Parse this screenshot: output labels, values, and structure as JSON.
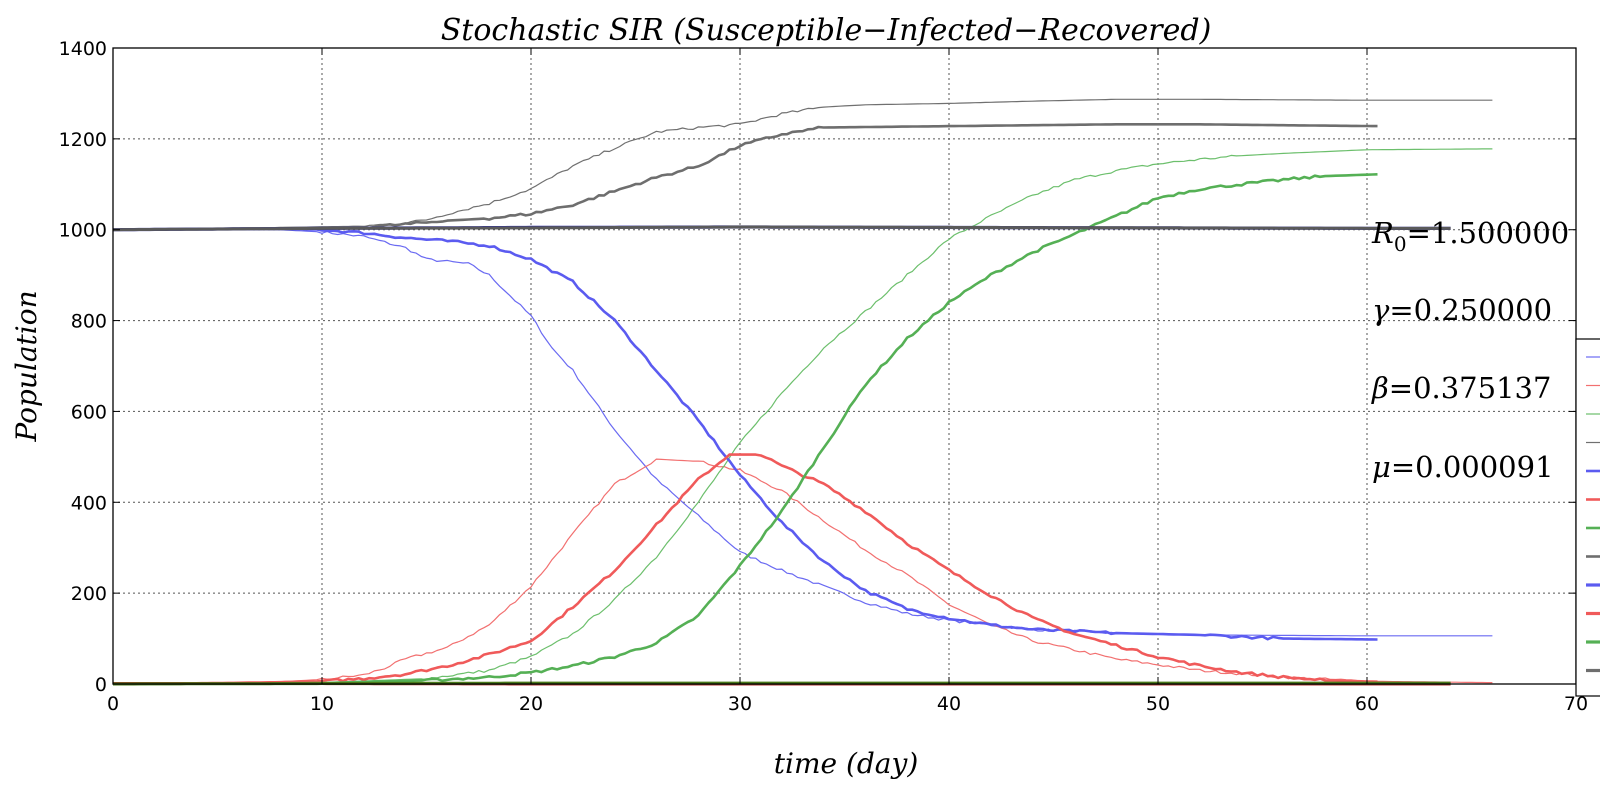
{
  "chart_data": {
    "type": "line",
    "title": "Stochastic SIR (Susceptible−Infected−Recovered)",
    "xlabel": "time (day)",
    "ylabel": "Population",
    "xlim": [
      0,
      70
    ],
    "ylim": [
      0,
      1400
    ],
    "xticks": [
      0,
      10,
      20,
      30,
      40,
      50,
      60,
      70
    ],
    "yticks": [
      0,
      200,
      400,
      600,
      800,
      1000,
      1200,
      1400
    ],
    "grid": true,
    "legend_position": "right, partially clipped, no labels visible",
    "annotations": [
      {
        "symbol": "R",
        "subscript": "0",
        "value": "=1.500000"
      },
      {
        "symbol": "γ",
        "subscript": "",
        "value": "=0.250000"
      },
      {
        "symbol": "β",
        "subscript": "",
        "value": "=0.375137"
      },
      {
        "symbol": "μ",
        "subscript": "",
        "value": "=0.000091"
      }
    ],
    "series": [
      {
        "color": "#6a6af2",
        "width": 1.2,
        "x": [
          0,
          5,
          8,
          10,
          12,
          14,
          15,
          17,
          18,
          19,
          20,
          21,
          22,
          24,
          26,
          28,
          30,
          32,
          34,
          36,
          38,
          40,
          44,
          48,
          52,
          56,
          60,
          66
        ],
        "y": [
          1000,
          1002,
          1000,
          995,
          985,
          960,
          935,
          925,
          900,
          855,
          810,
          740,
          690,
          560,
          450,
          370,
          290,
          250,
          215,
          180,
          155,
          140,
          120,
          112,
          108,
          107,
          106,
          106
        ]
      },
      {
        "color": "#f27070",
        "width": 1.2,
        "x": [
          0,
          5,
          8,
          10,
          12,
          13,
          14,
          16,
          18,
          20,
          22,
          24,
          26,
          28,
          30,
          32,
          34,
          36,
          38,
          40,
          42,
          44,
          48,
          52,
          56,
          60,
          66
        ],
        "y": [
          0,
          2,
          5,
          10,
          20,
          35,
          55,
          80,
          130,
          215,
          330,
          440,
          495,
          490,
          470,
          425,
          360,
          295,
          240,
          175,
          130,
          95,
          55,
          30,
          15,
          6,
          3
        ]
      },
      {
        "color": "#6cbf6c",
        "width": 1.2,
        "x": [
          0,
          5,
          10,
          15,
          18,
          20,
          22,
          24,
          26,
          28,
          30,
          32,
          34,
          36,
          38,
          40,
          42,
          44,
          46,
          48,
          50,
          52,
          54,
          56,
          58,
          60,
          66
        ],
        "y": [
          0,
          1,
          3,
          12,
          30,
          60,
          110,
          185,
          280,
          400,
          530,
          640,
          740,
          820,
          900,
          980,
          1030,
          1075,
          1110,
          1130,
          1145,
          1155,
          1163,
          1168,
          1172,
          1176,
          1178
        ]
      },
      {
        "color": "#707070",
        "width": 1.2,
        "x": [
          0,
          5,
          8,
          10,
          12,
          14,
          15,
          16,
          18,
          20,
          22,
          24,
          26,
          28,
          30,
          32,
          34,
          36,
          40,
          44,
          48,
          52,
          56,
          60,
          66
        ],
        "y": [
          1000,
          1002,
          1005,
          1005,
          1008,
          1015,
          1022,
          1035,
          1058,
          1090,
          1140,
          1180,
          1215,
          1225,
          1232,
          1255,
          1270,
          1275,
          1278,
          1283,
          1287,
          1287,
          1286,
          1285,
          1285
        ]
      },
      {
        "color": "#5b5bf0",
        "width": 2.6,
        "x": [
          0,
          5,
          8,
          10,
          12,
          14,
          16,
          18,
          20,
          22,
          24,
          26,
          28,
          30,
          32,
          34,
          36,
          38,
          40,
          42,
          44,
          48,
          52,
          56,
          60.5
        ],
        "y": [
          1000,
          1002,
          1003,
          1000,
          993,
          982,
          975,
          965,
          935,
          885,
          800,
          690,
          580,
          460,
          355,
          270,
          205,
          165,
          145,
          130,
          120,
          112,
          108,
          100,
          98
        ]
      },
      {
        "color": "#f05a5a",
        "width": 2.6,
        "x": [
          0,
          5,
          8,
          10,
          12,
          14,
          16,
          18,
          20,
          22,
          24,
          26,
          28,
          29.5,
          31,
          32,
          34,
          36,
          38,
          40,
          42,
          44,
          46,
          48,
          50,
          52,
          54,
          56,
          58,
          60.5
        ],
        "y": [
          0,
          2,
          4,
          6,
          12,
          22,
          40,
          65,
          95,
          170,
          250,
          350,
          450,
          505,
          505,
          480,
          440,
          380,
          310,
          250,
          195,
          145,
          110,
          85,
          60,
          40,
          25,
          15,
          8,
          5
        ]
      },
      {
        "color": "#55b055",
        "width": 2.6,
        "x": [
          0,
          10,
          15,
          18,
          20,
          22,
          24,
          26,
          28,
          30,
          32,
          34,
          36,
          38,
          40,
          42,
          44,
          46,
          48,
          50,
          52,
          54,
          56,
          58,
          60.5
        ],
        "y": [
          0,
          2,
          8,
          15,
          25,
          40,
          60,
          90,
          150,
          260,
          380,
          520,
          660,
          760,
          840,
          900,
          950,
          990,
          1030,
          1070,
          1090,
          1100,
          1110,
          1118,
          1122
        ]
      },
      {
        "color": "#6e6e6e",
        "width": 2.6,
        "x": [
          0,
          5,
          8,
          10,
          12,
          14,
          16,
          18,
          20,
          22,
          24,
          26,
          28,
          30,
          32,
          34,
          36,
          40,
          44,
          48,
          52,
          56,
          60.5
        ],
        "y": [
          1000,
          1002,
          1003,
          1005,
          1006,
          1012,
          1020,
          1025,
          1035,
          1055,
          1085,
          1115,
          1140,
          1185,
          1210,
          1225,
          1226,
          1228,
          1230,
          1232,
          1232,
          1230,
          1228
        ]
      },
      {
        "color": "#2828a0",
        "width": 3.2,
        "x": [
          0,
          10,
          20,
          30,
          40,
          50,
          60,
          64
        ],
        "y": [
          1000,
          1003,
          1005,
          1006,
          1005,
          1004,
          1003,
          1003
        ]
      },
      {
        "color": "#b03030",
        "width": 3.0,
        "x": [
          0,
          10,
          20,
          30,
          40,
          50,
          60,
          64
        ],
        "y": [
          1,
          1,
          0,
          0,
          0,
          0,
          0,
          0
        ]
      },
      {
        "color": "#4a7a1a",
        "width": 3.0,
        "x": [
          0,
          10,
          20,
          30,
          40,
          50,
          60,
          64
        ],
        "y": [
          0,
          1,
          2,
          2,
          2,
          2,
          2,
          2
        ]
      },
      {
        "color": "#5a5a5a",
        "width": 3.0,
        "x": [
          0,
          10,
          20,
          30,
          40,
          50,
          60,
          64
        ],
        "y": [
          1000,
          1003,
          1004,
          1006,
          1005,
          1004,
          1003,
          1003
        ]
      }
    ],
    "legend_swatches": [
      {
        "color": "#6a6af2",
        "width": 1.2
      },
      {
        "color": "#f27070",
        "width": 1.2
      },
      {
        "color": "#6cbf6c",
        "width": 1.2
      },
      {
        "color": "#707070",
        "width": 1.2
      },
      {
        "color": "#5b5bf0",
        "width": 2.6
      },
      {
        "color": "#f05a5a",
        "width": 2.6
      },
      {
        "color": "#55b055",
        "width": 2.6
      },
      {
        "color": "#6e6e6e",
        "width": 2.6
      },
      {
        "color": "#5b5bf0",
        "width": 3.2
      },
      {
        "color": "#f05a5a",
        "width": 3.2
      },
      {
        "color": "#55b055",
        "width": 3.2
      },
      {
        "color": "#6e6e6e",
        "width": 3.2
      }
    ]
  }
}
